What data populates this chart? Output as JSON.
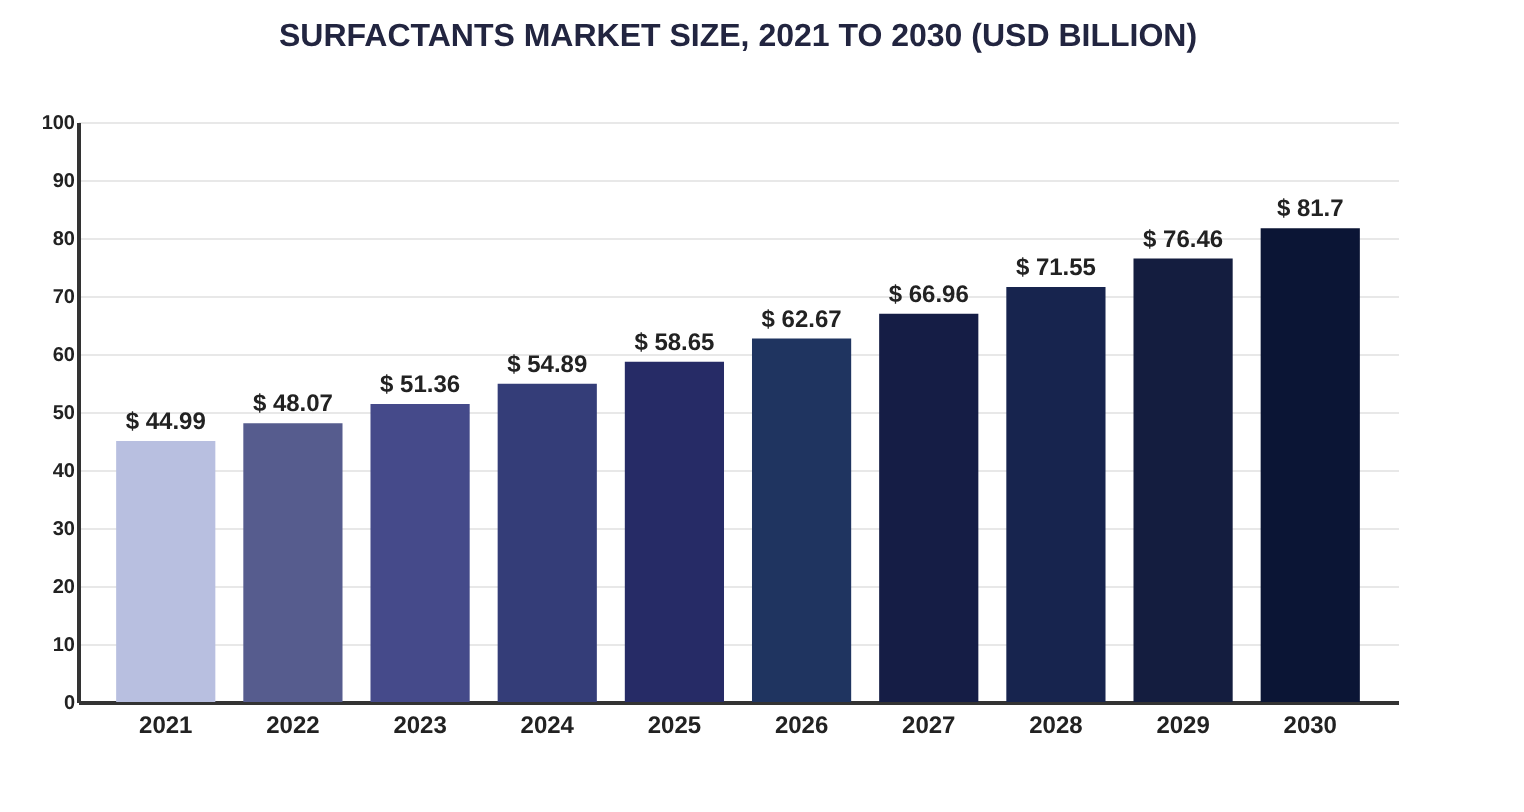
{
  "chart_data": {
    "type": "bar",
    "title": "SURFACTANTS MARKET SIZE, 2021 TO 2030 (USD BILLION)",
    "categories": [
      "2021",
      "2022",
      "2023",
      "2024",
      "2025",
      "2026",
      "2027",
      "2028",
      "2029",
      "2030"
    ],
    "values": [
      44.99,
      48.07,
      51.36,
      54.89,
      58.65,
      62.67,
      66.96,
      71.55,
      76.46,
      81.7
    ],
    "value_labels": [
      "$ 44.99",
      "$ 48.07",
      "$ 51.36",
      "$ 54.89",
      "$ 58.65",
      "$ 62.67",
      "$ 66.96",
      "$ 71.55",
      "$ 76.46",
      "$ 81.7"
    ],
    "colors": [
      "#b8bfe0",
      "#565c8e",
      "#454a8a",
      "#343d78",
      "#262b66",
      "#1f3460",
      "#151d45",
      "#17244e",
      "#141d3f",
      "#0b1535"
    ],
    "ylim": [
      0,
      100
    ],
    "yticks": [
      0,
      10,
      20,
      30,
      40,
      50,
      60,
      70,
      80,
      90,
      100
    ],
    "grid": "y"
  }
}
